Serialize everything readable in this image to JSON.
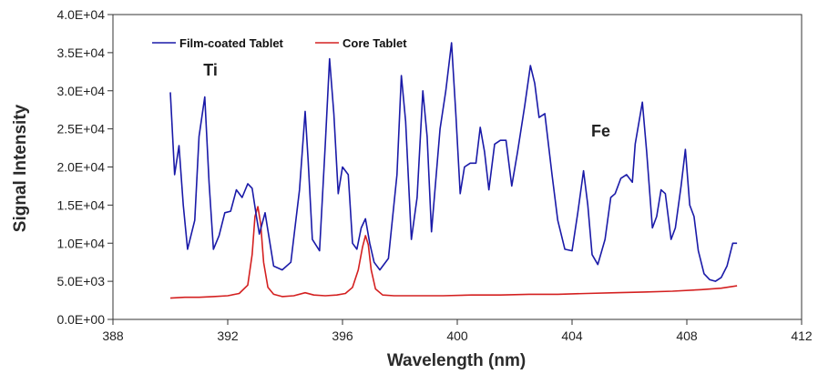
{
  "chart_data": {
    "type": "line",
    "title": "",
    "xlabel": "Wavelength (nm)",
    "ylabel": "Signal Intensity",
    "xlim": [
      388,
      412
    ],
    "ylim": [
      0,
      40000
    ],
    "x_ticks": [
      388,
      392,
      396,
      400,
      404,
      408,
      412
    ],
    "x_tick_labels": [
      "388",
      "392",
      "396",
      "400",
      "404",
      "408",
      "412"
    ],
    "y_ticks": [
      0,
      5000,
      10000,
      15000,
      20000,
      25000,
      30000,
      35000,
      40000
    ],
    "y_tick_labels": [
      "0.0E+00",
      "5.0E+03",
      "1.0E+04",
      "1.5E+04",
      "2.0E+04",
      "2.5E+04",
      "3.0E+04",
      "3.5E+04",
      "4.0E+04"
    ],
    "grid": false,
    "legend_position": "top-left",
    "annotations": [
      {
        "text": "Ti",
        "x": 391.4,
        "y": 32000
      },
      {
        "text": "Fe",
        "x": 405.0,
        "y": 24000
      }
    ],
    "series": [
      {
        "name": "Film-coated Tablet",
        "color": "#1a1aa8",
        "x": [
          390.0,
          390.15,
          390.3,
          390.45,
          390.6,
          390.85,
          391.0,
          391.2,
          391.35,
          391.5,
          391.7,
          391.9,
          392.1,
          392.3,
          392.5,
          392.7,
          392.85,
          393.0,
          393.1,
          393.3,
          393.6,
          393.9,
          394.2,
          394.5,
          394.7,
          394.8,
          394.95,
          395.2,
          395.4,
          395.55,
          395.7,
          395.85,
          396.0,
          396.2,
          396.35,
          396.5,
          396.65,
          396.8,
          396.95,
          397.1,
          397.3,
          397.6,
          397.9,
          398.05,
          398.2,
          398.4,
          398.6,
          398.8,
          398.95,
          399.1,
          399.4,
          399.6,
          399.8,
          399.95,
          400.1,
          400.25,
          400.45,
          400.65,
          400.8,
          400.95,
          401.1,
          401.3,
          401.5,
          401.7,
          401.9,
          402.1,
          402.35,
          402.55,
          402.7,
          402.85,
          403.05,
          403.3,
          403.5,
          403.75,
          404.0,
          404.2,
          404.4,
          404.55,
          404.7,
          404.9,
          405.15,
          405.35,
          405.5,
          405.7,
          405.9,
          406.1,
          406.2,
          406.45,
          406.6,
          406.8,
          406.95,
          407.1,
          407.25,
          407.45,
          407.6,
          407.8,
          407.95,
          408.1,
          408.25,
          408.4,
          408.6,
          408.8,
          409.0,
          409.2,
          409.4,
          409.6,
          409.75
        ],
        "y": [
          29800,
          19000,
          22800,
          15000,
          9200,
          13000,
          24000,
          29200,
          18000,
          9200,
          11000,
          14000,
          14200,
          17000,
          16000,
          17800,
          17200,
          13500,
          11200,
          14000,
          7000,
          6500,
          7500,
          17000,
          27300,
          21000,
          10500,
          9000,
          23000,
          34200,
          27000,
          16500,
          20000,
          19000,
          10000,
          9200,
          12000,
          13200,
          10000,
          7500,
          6500,
          8000,
          19000,
          32000,
          26000,
          10500,
          16000,
          30000,
          24000,
          11500,
          25000,
          30000,
          36300,
          27000,
          16500,
          20000,
          20500,
          20500,
          25200,
          22000,
          17000,
          23000,
          23500,
          23500,
          17500,
          22000,
          28000,
          33300,
          31000,
          26500,
          27000,
          19000,
          13000,
          9200,
          9000,
          14000,
          19500,
          15000,
          8500,
          7200,
          10500,
          16000,
          16500,
          18500,
          19000,
          18000,
          23000,
          28500,
          22000,
          12000,
          13500,
          17000,
          16500,
          10500,
          12000,
          17500,
          22300,
          15000,
          13500,
          9000,
          6000,
          5200,
          5000,
          5500,
          7000,
          10000,
          10000
        ]
      },
      {
        "name": "Core Tablet",
        "color": "#d42020",
        "x": [
          390.0,
          390.5,
          391.0,
          391.5,
          392.0,
          392.4,
          392.7,
          392.85,
          392.95,
          393.05,
          393.15,
          393.25,
          393.4,
          393.6,
          393.9,
          394.3,
          394.7,
          395.0,
          395.4,
          395.8,
          396.1,
          396.35,
          396.55,
          396.7,
          396.8,
          396.9,
          397.0,
          397.15,
          397.4,
          397.8,
          398.5,
          399.5,
          400.5,
          401.5,
          402.5,
          403.5,
          404.5,
          405.5,
          406.5,
          407.5,
          408.5,
          409.2,
          409.75
        ],
        "y": [
          2800,
          2900,
          2900,
          3000,
          3100,
          3400,
          4500,
          8500,
          13500,
          14800,
          12500,
          7500,
          4200,
          3300,
          3000,
          3100,
          3500,
          3200,
          3100,
          3200,
          3400,
          4200,
          6500,
          9500,
          11000,
          9800,
          6500,
          4000,
          3200,
          3100,
          3100,
          3100,
          3200,
          3200,
          3300,
          3300,
          3400,
          3500,
          3600,
          3700,
          3900,
          4100,
          4400
        ]
      }
    ]
  }
}
